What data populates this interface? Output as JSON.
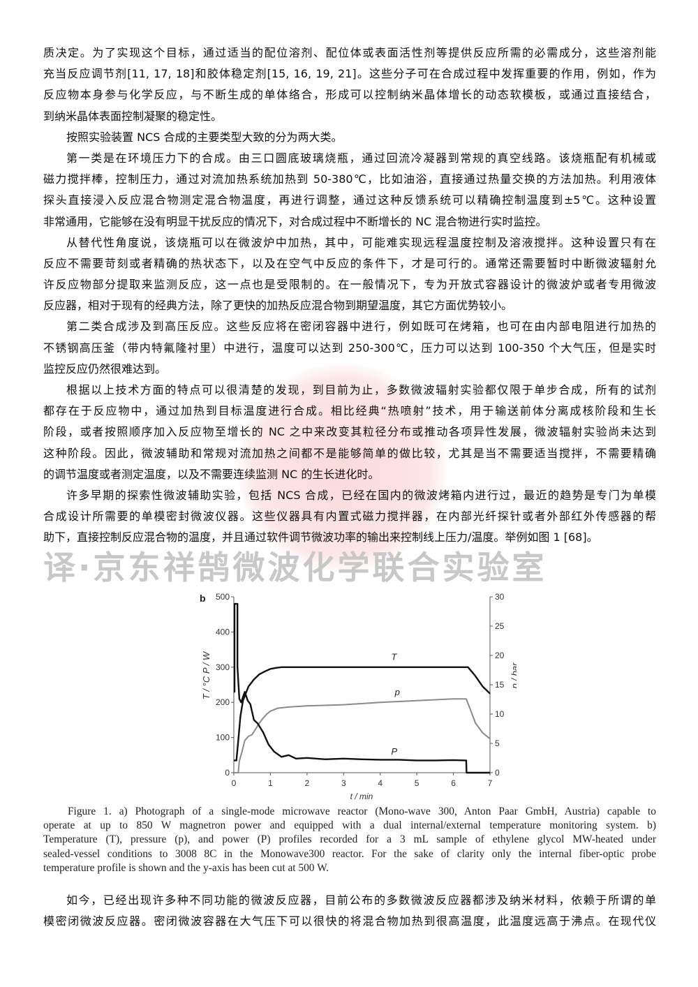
{
  "paragraphs": [
    {
      "indent": false,
      "lines": [
        "质决定。为了实现这个目标，通过适当的配位溶剂、配位体或表面活性剂等提供反应所需的必需成分，这些溶剂能",
        "充当反应调节剂[11, 17, 18]和胶体稳定剂[15, 16, 19, 21]。这些分子可在合成过程中发挥重要的作用，例如，作为",
        "反应物本身参与化学反应，与不断生成的单体络合，形成可以控制纳米晶体增长的动态软模板，或通过直接结合，",
        "到纳米晶体表面控制凝聚的稳定性。"
      ]
    },
    {
      "indent": true,
      "lines": [
        "按照实验装置 NCS 合成的主要类型大致的分为两大类。"
      ]
    },
    {
      "indent": true,
      "lines": [
        "第一类是在环境压力下的合成。由三口圆底玻璃烧瓶，通过回流冷凝器到常规的真空线路。该烧瓶配有机械或",
        "磁力搅拌棒，控制压力，通过对流加热系统加热到 50-380℃，比如油浴，直接通过热量交换的方法加热。利用液体",
        "探头直接浸入反应混合物测定混合物温度，再进行调整，通过这种反馈系统可以精确控制温度到±5℃。这种设置",
        "非常通用，它能够在没有明显干扰反应的情况下，对合成过程中不断增长的 NC 混合物进行实时监控。"
      ]
    },
    {
      "indent": true,
      "lines": [
        "从替代性角度说，该烧瓶可以在微波炉中加热，其中，可能难实现远程温度控制及溶液搅拌。这种设置只有在",
        "反应不需要苛刻或者精确的热状态下，以及在空气中反应的条件下，才是可行的。通常还需要暂时中断微波辐射允",
        "许反应物部分提取来监测反应，这一点也是受限制的。在一般情况下，专为开放式容器设计的微波炉或者专用微波",
        "反应器，相对于现有的经典方法，除了更快的加热反应混合物到期望温度，其它方面优势较小。"
      ]
    },
    {
      "indent": true,
      "lines": [
        "第二类合成涉及到高压反应。这些反应将在密闭容器中进行，例如既可在烤箱，也可在由内部电阻进行加热的",
        "不锈钢高压釜（带内特氟隆衬里）中进行，温度可以达到 250-300℃，压力可以达到 100-350 个大气压，但是实时",
        "监控反应仍然很难达到。"
      ]
    },
    {
      "indent": true,
      "lines": [
        "根据以上技术方面的特点可以很清楚的发现，到目前为止，多数微波辐射实验都仅限于单步合成，所有的试剂",
        "都存在于反应物中，通过加热到目标温度进行合成。相比经典“热喷射”技术，用于输送前体分离成核阶段和生长",
        "阶段，或者按照顺序加入反应物至增长的 NC 之中来改变其粒径分布或推动各项异性发展，微波辐射实验尚未达到",
        "这种阶段。因此，微波辅助和常规对流加热之间都不是能够简单的做比较，尤其是当不需要适当搅拌，不需要精确",
        "的调节温度或者测定温度，以及不需要连续监测 NC 的生长进化时。"
      ]
    },
    {
      "indent": true,
      "lines": [
        "许多早期的探索性微波辅助实验，包括 NCS 合成，已经在国内的微波烤箱内进行过，最近的趋势是专门为单模",
        "合成设计所需要的单模密封微波仪器。这些仪器具有内置式磁力搅拌器，在内部光纤探针或者外部红外传感器的帮",
        "助下，直接控制反应混合物的温度，并且通过软件调节微波功率的输出来控制线上压力/温度。举例如图 1 [68]。"
      ]
    }
  ],
  "watermark": "译·京东祥鹄微波化学联合实验室",
  "caption_lines": [
    "Figure 1. a) Photograph of a single-mode microwave reactor (Mono-wave 300, Anton Paar GmbH, Austria) capable to",
    "operate at up to 850 W magnetron power and equipped with a dual internal/external temperature monitoring system. b)",
    "Temperature (T), pressure (p), and power (P) profiles recorded for a 3 mL sample of ethylene glycol MW-heated under",
    "sealed-vessel conditions to 3008 8C in the Monowave300 reactor. For the sake of clarity only the internal fiber-optic probe",
    "temperature profile is shown and the y-axis has been cut at 500 W."
  ],
  "tail_paragraph": {
    "lines": [
      "如今，已经出现许多种不同功能的微波反应器，目前公布的多数微波反应器都涉及纳米材料，依赖于所谓的单",
      "模密闭微波反应器。密闭微波容器在大气压下可以很快的将混合物加热到很高温度，此温度远高于沸点。在现代仪"
    ]
  },
  "chart_data": {
    "type": "line",
    "panel_label": "b",
    "xlabel": "t / min",
    "ylabel_left": "T / °C   P / W",
    "ylabel_right": "p / bar",
    "xlim": [
      0,
      7
    ],
    "ylim_left": [
      0,
      500
    ],
    "ylim_right": [
      0,
      30
    ],
    "xticks": [
      0,
      1,
      2,
      3,
      4,
      5,
      6,
      7
    ],
    "yticks_left": [
      0,
      100,
      200,
      300,
      400,
      500
    ],
    "yticks_right": [
      0,
      5,
      10,
      15,
      20,
      25,
      30
    ],
    "grid": false,
    "series": [
      {
        "name": "T",
        "axis": "left",
        "color": "#111111",
        "x": [
          0,
          0.07,
          0.12,
          0.18,
          0.25,
          0.4,
          0.55,
          0.7,
          0.85,
          1.0,
          1.15,
          1.3,
          2,
          3,
          4,
          5,
          6,
          6.4,
          6.6,
          6.8,
          7
        ],
        "y": [
          35,
          35,
          90,
          160,
          205,
          245,
          265,
          280,
          288,
          295,
          298,
          300,
          300,
          300,
          300,
          300,
          300,
          300,
          275,
          245,
          225
        ]
      },
      {
        "name": "p",
        "axis": "right",
        "color": "#8a8a8a",
        "x": [
          0,
          0.12,
          0.15,
          0.22,
          0.3,
          0.4,
          0.5,
          0.6,
          0.7,
          0.8,
          0.9,
          1.0,
          1.2,
          1.5,
          2,
          3,
          4,
          5,
          6,
          6.35,
          6.45,
          6.6,
          6.8,
          7
        ],
        "y": [
          0,
          0,
          2,
          3.5,
          5.5,
          6.2,
          6.5,
          7.5,
          8.5,
          9.3,
          10,
          10.5,
          11,
          11.2,
          11.4,
          11.6,
          12,
          12.3,
          12.6,
          12.6,
          11,
          8.5,
          6.8,
          5.8
        ]
      },
      {
        "name": "P",
        "axis": "left",
        "color": "#111111",
        "x": [
          0,
          0.02,
          0.02,
          0.05,
          0.1,
          0.1,
          0.15,
          0.2,
          0.3,
          0.38,
          0.45,
          0.55,
          0.65,
          0.8,
          0.95,
          1.1,
          1.3,
          1.5,
          1.7,
          2,
          2.5,
          3,
          3.5,
          4,
          4.5,
          5,
          5.5,
          6,
          6.35,
          6.36,
          7
        ],
        "y": [
          230,
          230,
          480,
          480,
          480,
          300,
          210,
          200,
          230,
          205,
          195,
          150,
          140,
          115,
          80,
          60,
          45,
          50,
          40,
          42,
          38,
          40,
          38,
          37,
          37,
          35,
          35,
          36,
          35,
          0,
          0
        ]
      }
    ]
  }
}
